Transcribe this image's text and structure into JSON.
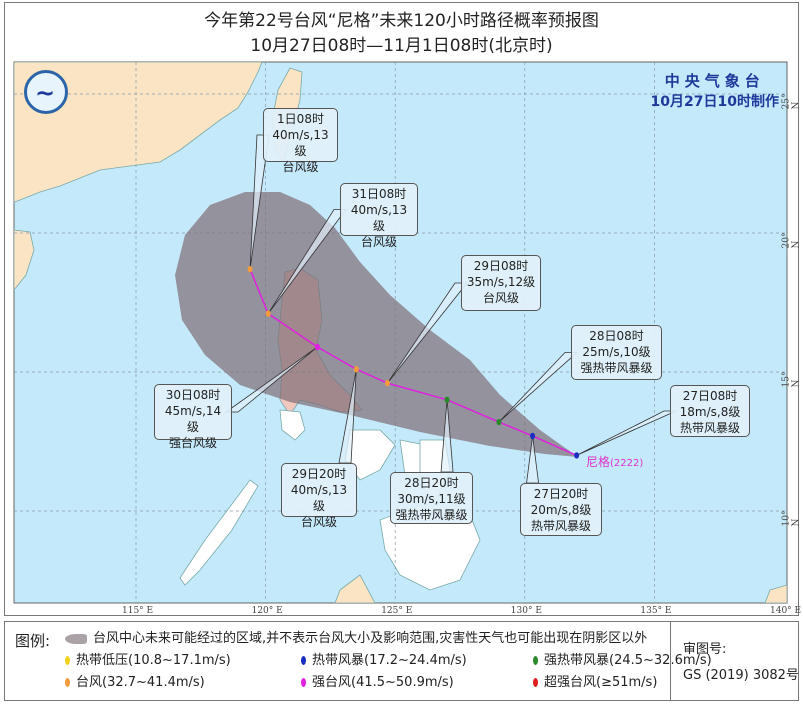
{
  "title": "今年第22号台风“尼格”未来120小时路径概率预报图",
  "subtitle": "10月27日08时—11月1日08时(北京时)",
  "agency": {
    "name": "中央气象台",
    "issued": "10月27日10时制作"
  },
  "storm_label": {
    "name": "尼格",
    "code": "(2222)"
  },
  "axes": {
    "longitude_labels": [
      "115° E",
      "120° E",
      "125° E",
      "130° E",
      "135° E",
      "140° E"
    ],
    "latitude_labels": [
      "25° N",
      "20° N",
      "15° N",
      "10° N"
    ]
  },
  "colors": {
    "ocean": "#c4e9fb",
    "land": "#fbe4c4",
    "cone": "#7f7078",
    "track": "#e020e0",
    "tropical_depression": "#f2d21c",
    "tropical_storm": "#1a2fc0",
    "severe_tropical_storm": "#2a8a2a",
    "typhoon": "#f39a3c",
    "severe_typhoon": "#e020e0",
    "super_typhoon": "#e01c1c"
  },
  "track": [
    {
      "time": "27日08时",
      "wind": "18m/s,8级",
      "category": "热带风暴级",
      "lon": 132.0,
      "lat": 12.0,
      "color": "tropical_storm"
    },
    {
      "time": "27日20时",
      "wind": "20m/s,8级",
      "category": "热带风暴级",
      "lon": 130.3,
      "lat": 12.7,
      "color": "tropical_storm"
    },
    {
      "time": "28日08时",
      "wind": "25m/s,10级",
      "category": "强热带风暴级",
      "lon": 129.0,
      "lat": 13.2,
      "color": "severe_tropical_storm"
    },
    {
      "time": "28日20时",
      "wind": "30m/s,11级",
      "category": "强热带风暴级",
      "lon": 127.0,
      "lat": 14.0,
      "color": "severe_tropical_storm"
    },
    {
      "time": "29日08时",
      "wind": "35m/s,12级",
      "category": "台风级",
      "lon": 124.7,
      "lat": 14.6,
      "color": "typhoon"
    },
    {
      "time": "29日20时",
      "wind": "40m/s,13级",
      "category": "台风级",
      "lon": 123.5,
      "lat": 15.1,
      "color": "typhoon"
    },
    {
      "time": "30日08时",
      "wind": "45m/s,14级",
      "category": "强台风级",
      "lon": 122.0,
      "lat": 15.9,
      "color": "severe_typhoon"
    },
    {
      "time": "31日08时",
      "wind": "40m/s,13级",
      "category": "台风级",
      "lon": 120.1,
      "lat": 17.1,
      "color": "typhoon"
    },
    {
      "time": "1日08时",
      "wind": "40m/s,13级",
      "category": "台风级",
      "lon": 119.4,
      "lat": 18.7,
      "color": "typhoon"
    }
  ],
  "legend": {
    "heading": "图例:",
    "cone": "台风中心未来可能经过的区域,并不表示台风大小及影响范围,灾害性天气也可能出现在阴影区以外",
    "items": [
      {
        "label": "热带低压(10.8~17.1m/s)",
        "color": "tropical_depression"
      },
      {
        "label": "热带风暴(17.2~24.4m/s)",
        "color": "tropical_storm"
      },
      {
        "label": "强热带风暴(24.5~32.6m/s)",
        "color": "severe_tropical_storm"
      },
      {
        "label": "台风(32.7~41.4m/s)",
        "color": "typhoon"
      },
      {
        "label": "强台风(41.5~50.9m/s)",
        "color": "severe_typhoon"
      },
      {
        "label": "超强台风(≥51m/s)",
        "color": "super_typhoon"
      }
    ],
    "approval_label": "审图号:",
    "approval_number": "GS (2019) 3082号"
  }
}
